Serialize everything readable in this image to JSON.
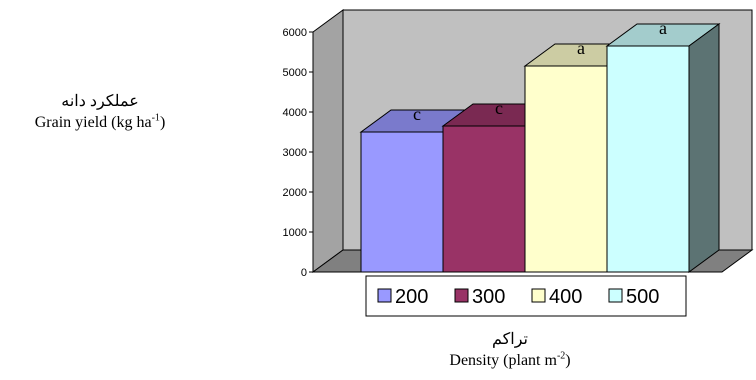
{
  "chart_data": {
    "type": "bar",
    "style": "3d",
    "categories": [
      "200",
      "300",
      "400",
      "500"
    ],
    "values": [
      3500,
      3650,
      5150,
      5650
    ],
    "letters": [
      "c",
      "c",
      "a",
      "a"
    ],
    "colors": [
      "#9999ff",
      "#993366",
      "#ffffcc",
      "#ccffff"
    ],
    "ylim": [
      0,
      6000
    ],
    "yticks": [
      "0",
      "1000",
      "2000",
      "3000",
      "4000",
      "5000",
      "6000"
    ],
    "legend": [
      "200",
      "300",
      "400",
      "500"
    ],
    "legend_position": "bottom",
    "ylabel_fa": "عملکرد دانه",
    "ylabel_en": "Grain yield  (kg ha",
    "ylabel_sup": "-1",
    "ylabel_close": ")",
    "xlabel_fa": "تراکم",
    "xlabel_en": "Density (plant m",
    "xlabel_sup": "-2",
    "xlabel_close": ")",
    "wall_color": "#c0c0c0",
    "floor_color": "#808080",
    "grid": false
  }
}
